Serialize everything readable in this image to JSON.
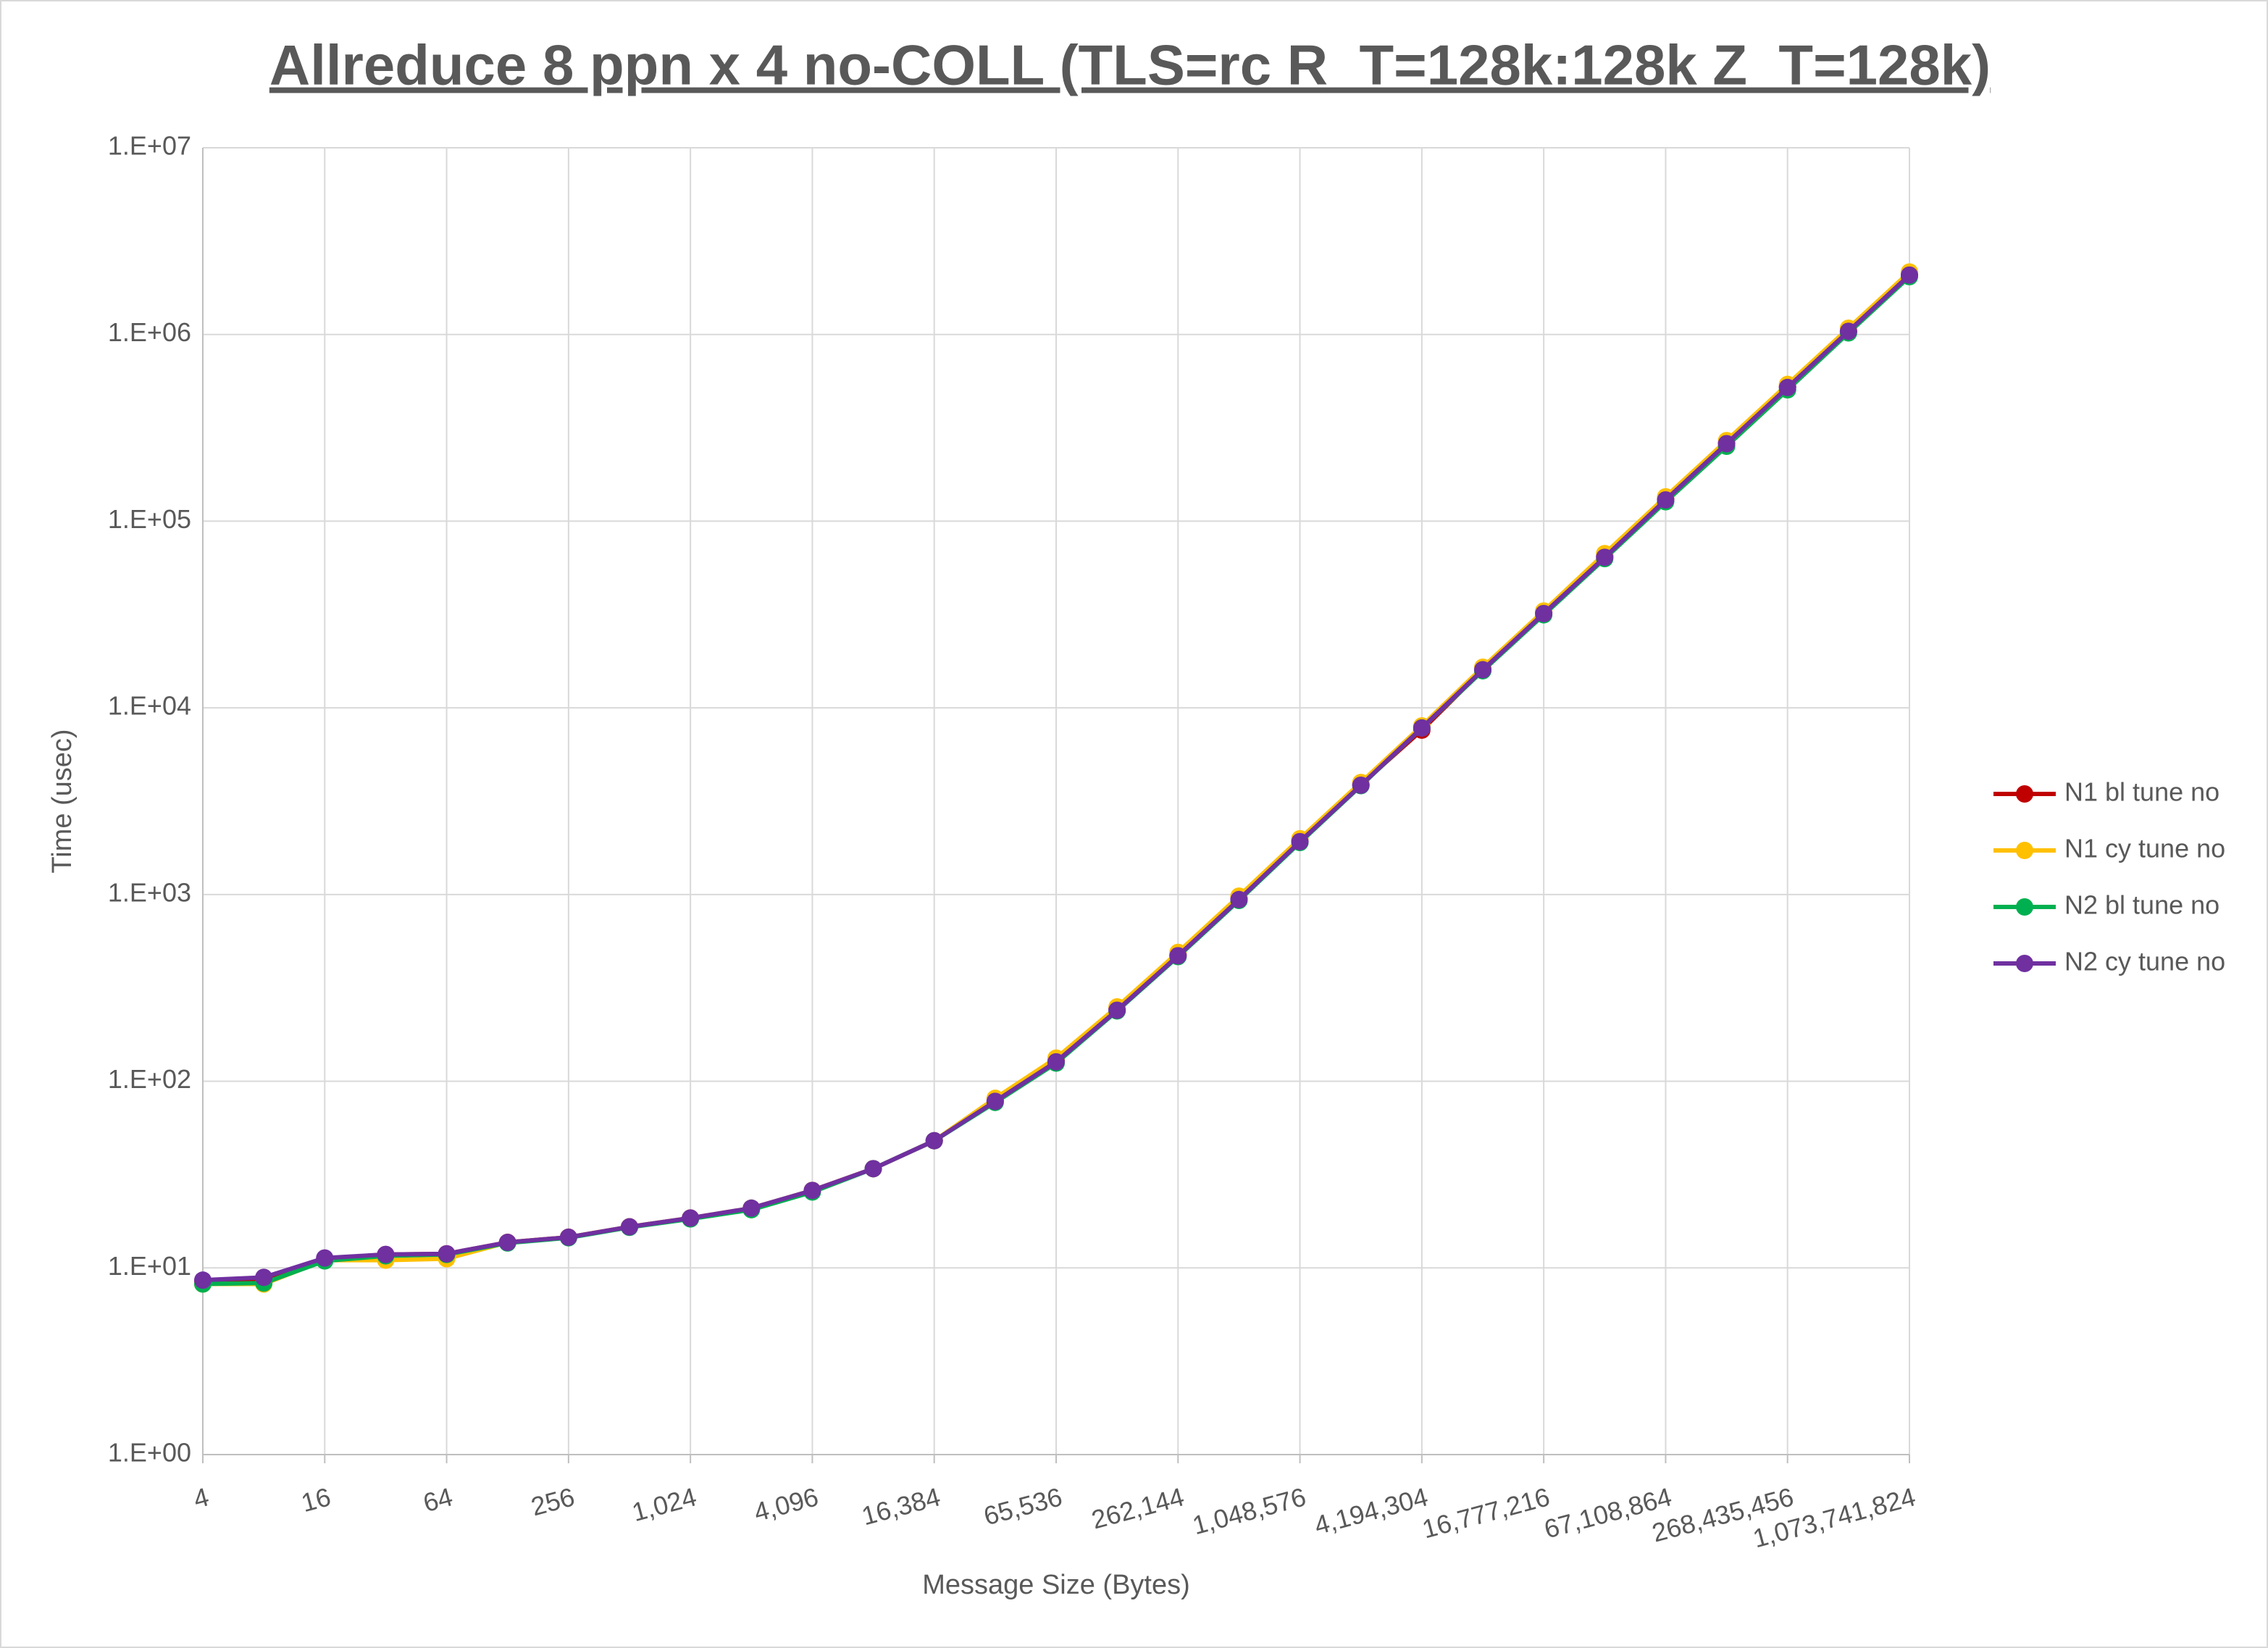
{
  "chart_data": {
    "type": "line",
    "title": "Allreduce 8 ppn x 4 no-COLL (TLS=rc R_T=128k:128k Z_T=128k)",
    "x_label": "Message Size (Bytes)",
    "y_label": "Time (usec)",
    "x": [
      4,
      8,
      16,
      32,
      64,
      128,
      256,
      512,
      1024,
      2048,
      4096,
      8192,
      16384,
      32768,
      65536,
      131072,
      262144,
      524288,
      1048576,
      2097152,
      4194304,
      8388608,
      16777216,
      33554432,
      67108864,
      134217728,
      268435456,
      536870912,
      1073741824
    ],
    "series": [
      {
        "name": "N1 bl tune no",
        "color": "#c00000",
        "values": [
          8.5,
          8.7,
          11.2,
          11.8,
          11.9,
          13.7,
          14.6,
          16.6,
          18.5,
          20.8,
          26,
          34,
          48,
          79,
          130,
          245,
          475,
          950,
          1930,
          3880,
          7600,
          16000,
          32500,
          65000,
          131000,
          262000,
          525000,
          1040000,
          2080000
        ]
      },
      {
        "name": "N1 cy tune no",
        "color": "#ffc000",
        "values": [
          8.2,
          8.2,
          11.0,
          11.0,
          11.2,
          13.7,
          14.6,
          16.6,
          18.5,
          20.9,
          26,
          34,
          48,
          81,
          133,
          250,
          490,
          980,
          1990,
          3980,
          8000,
          16500,
          33000,
          67000,
          135000,
          270000,
          540000,
          1080000,
          2160000
        ]
      },
      {
        "name": "N2 bl tune no",
        "color": "#00b050",
        "values": [
          8.2,
          8.3,
          10.9,
          11.6,
          11.8,
          13.6,
          14.5,
          16.5,
          18.3,
          20.5,
          25.5,
          34,
          48,
          77,
          125,
          238,
          465,
          930,
          1900,
          3830,
          7800,
          15800,
          31500,
          63000,
          127000,
          252000,
          505000,
          1020000,
          2040000
        ]
      },
      {
        "name": "N2 cy tune no",
        "color": "#7030a0",
        "values": [
          8.6,
          8.9,
          11.3,
          11.8,
          11.9,
          13.7,
          14.6,
          16.6,
          18.5,
          20.9,
          26,
          34,
          48,
          78,
          127,
          240,
          470,
          940,
          1920,
          3850,
          7800,
          16000,
          32000,
          64000,
          130000,
          260000,
          520000,
          1040000,
          2080000
        ]
      }
    ],
    "xscale": "log",
    "yscale": "log",
    "xlim": [
      4,
      1073741824
    ],
    "xticks": [
      4,
      16,
      64,
      256,
      {
        "value": 1024,
        "label": "1,024"
      },
      {
        "value": 4096,
        "label": "4,096"
      },
      {
        "value": 16384,
        "label": "16,384"
      },
      {
        "value": 65536,
        "label": "65,536"
      },
      {
        "value": 262144,
        "label": "262,144"
      },
      {
        "value": 1048576,
        "label": "1,048,576"
      },
      {
        "value": 4194304,
        "label": "4,194,304"
      },
      {
        "value": 16777216,
        "label": "16,777,216"
      },
      {
        "value": 67108864,
        "label": "67,108,864"
      },
      {
        "value": 268435456,
        "label": "268,435,456"
      },
      {
        "value": 1073741824,
        "label": "1,073,741,824"
      }
    ],
    "ylim": [
      1,
      10000000
    ],
    "yticks": [
      {
        "value": 1,
        "label": "1.E+00"
      },
      {
        "value": 10,
        "label": "1.E+01"
      },
      {
        "value": 100,
        "label": "1.E+02"
      },
      {
        "value": 1000,
        "label": "1.E+03"
      },
      {
        "value": 10000,
        "label": "1.E+04"
      },
      {
        "value": 100000,
        "label": "1.E+05"
      },
      {
        "value": 1000000,
        "label": "1.E+06"
      },
      {
        "value": 10000000,
        "label": "1.E+07"
      }
    ],
    "grid": true,
    "legend": "right"
  }
}
